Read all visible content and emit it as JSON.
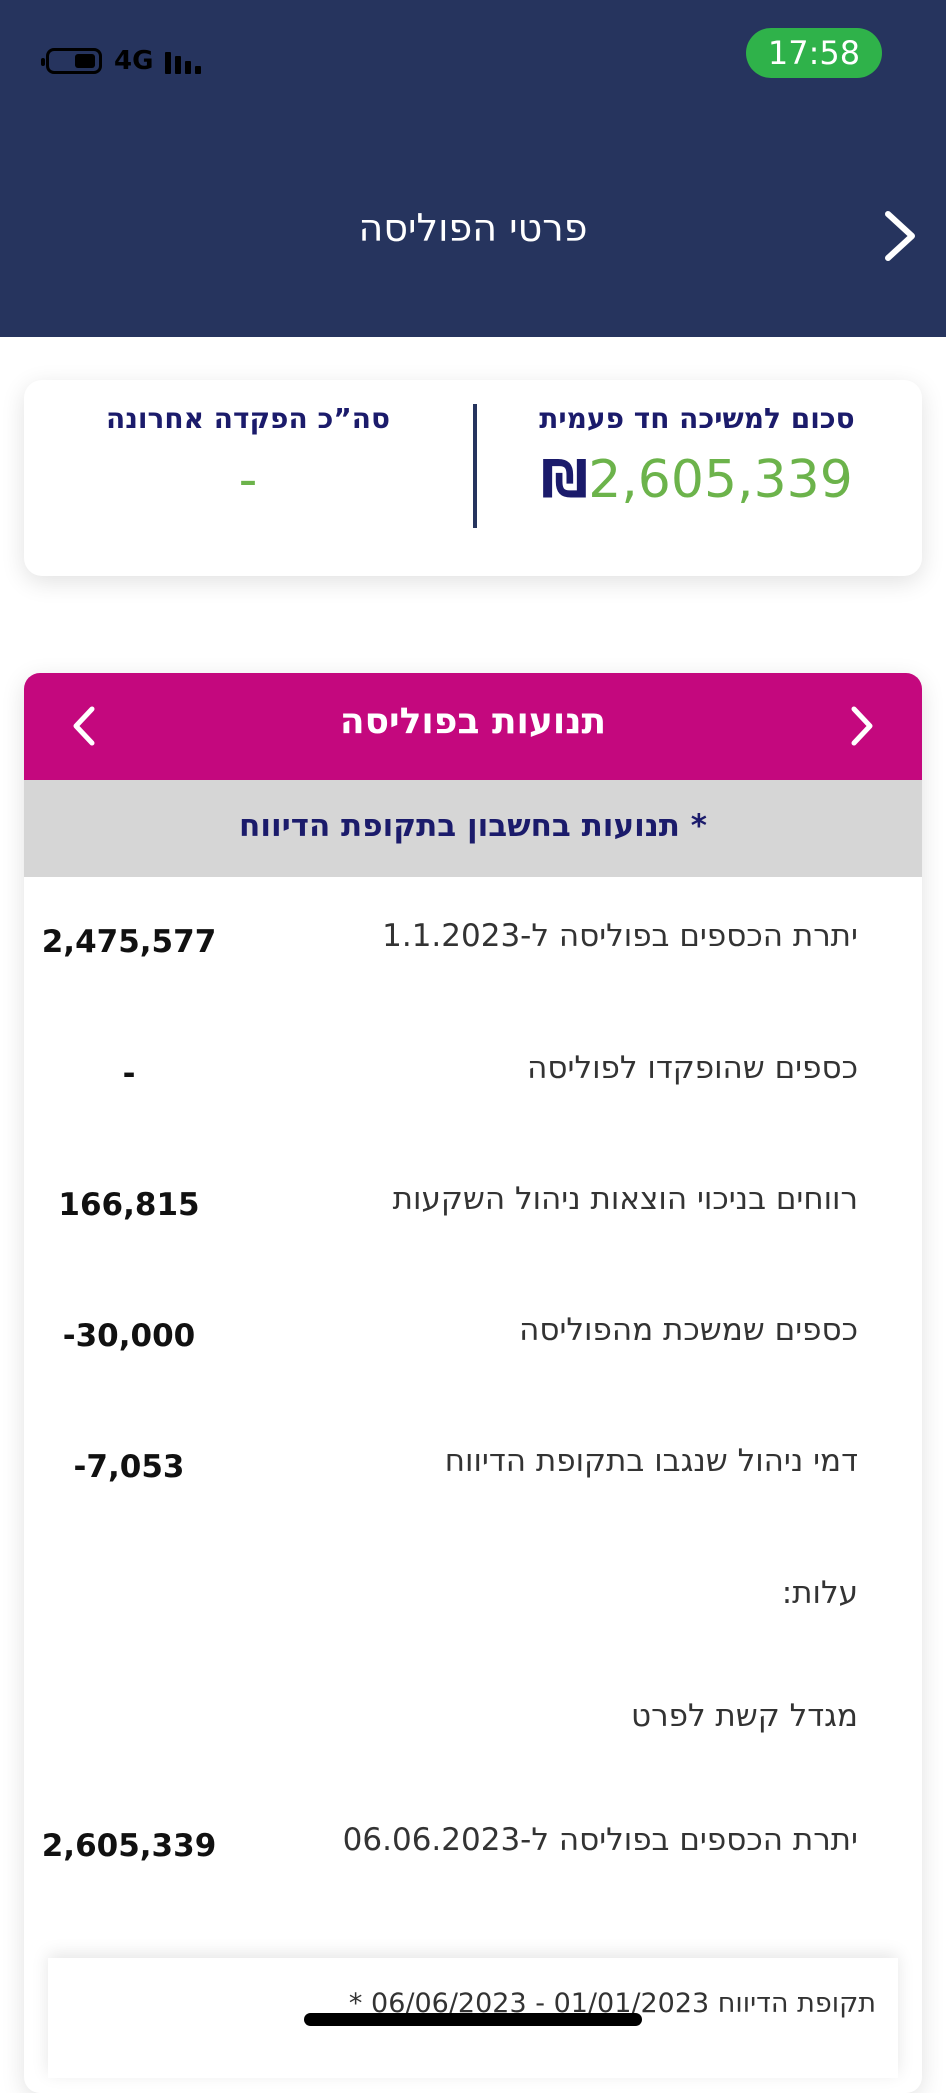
{
  "status_bar": {
    "time": "17:58",
    "network": "4G"
  },
  "header": {
    "title": "פרטי הפוליסה"
  },
  "summary": {
    "withdrawal_label": "סכום למשיכה חד פעמית",
    "withdrawal_value": "2,605,339",
    "currency_symbol": "₪",
    "last_deposit_label": "סה”כ הפקדה אחרונה",
    "last_deposit_value": "-"
  },
  "transactions": {
    "title": "תנועות בפוליסה",
    "subtitle": "תנועות בחשבון בתקופת הדיווח *",
    "rows": [
      {
        "label": "יתרת הכספים בפוליסה ל-1.1.2023",
        "value": "2,475,577"
      },
      {
        "label": "כספים שהופקדו לפוליסה",
        "value": "-"
      },
      {
        "label": "רווחים בניכוי הוצאות ניהול השקעות",
        "value": "166,815"
      },
      {
        "label": "כספים שמשכת מהפוליסה",
        "value": "-30,000"
      },
      {
        "label": "דמי ניהול שנגבו בתקופת הדיווח",
        "value": "-7,053"
      },
      {
        "label": "עלות:",
        "value": ""
      },
      {
        "label": "מגדל קשת לפרט",
        "value": ""
      },
      {
        "label": "יתרת הכספים בפוליסה ל-06.06.2023",
        "value": "2,605,339"
      }
    ],
    "footnote": "* תקופת הדיווח 01/01/2023 - 06/06/2023"
  },
  "colors": {
    "header_bg": "#26345e",
    "accent_magenta": "#c4087e",
    "value_green": "#6cb34b",
    "time_pill": "#2fb24a"
  }
}
